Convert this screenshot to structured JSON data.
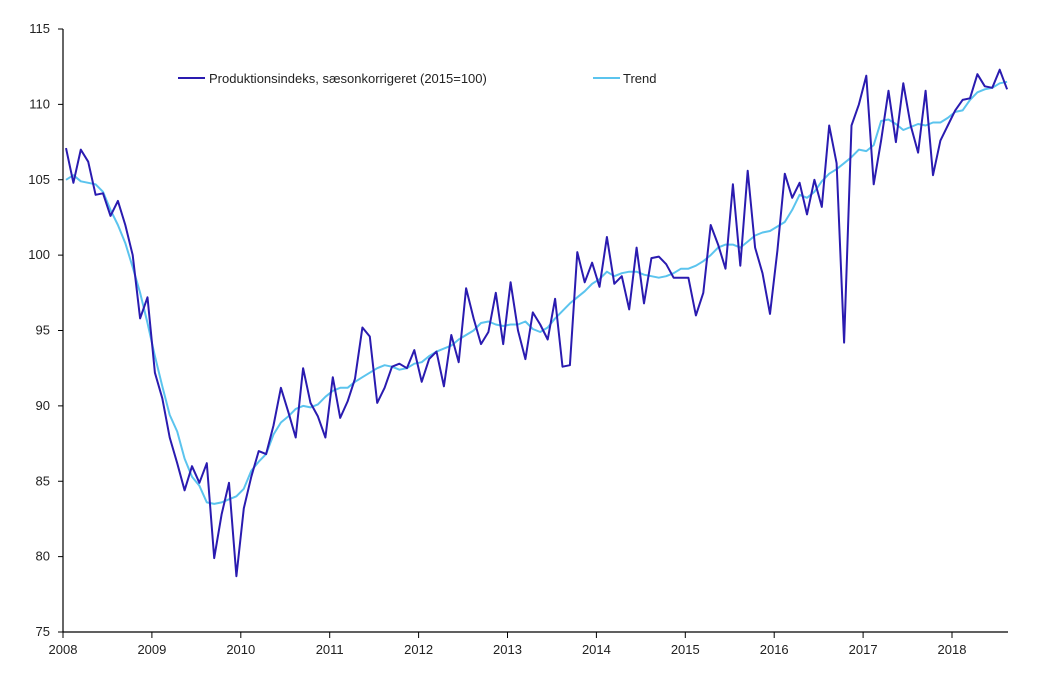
{
  "chart_data": {
    "type": "line",
    "title": "",
    "xlabel": "",
    "ylabel": "",
    "ylim": [
      75,
      115
    ],
    "yticks": [
      "75",
      "80",
      "85",
      "90",
      "95",
      "100",
      "105",
      "110",
      "115"
    ],
    "xticks": [
      "2008",
      "2009",
      "2010",
      "2011",
      "2012",
      "2013",
      "2014",
      "2015",
      "2016",
      "2017",
      "2018"
    ],
    "x_start": "2008-01",
    "frequency": "monthly",
    "grid": false,
    "legend_placement": "top",
    "series": [
      {
        "name": "Produktionsindeks, sæsonkorrigeret (2015=100)",
        "color": "#2a1bb0",
        "values": [
          107.1,
          104.8,
          107.0,
          106.2,
          104.0,
          104.1,
          102.6,
          103.6,
          102.0,
          100.0,
          95.8,
          97.2,
          92.2,
          90.5,
          87.9,
          86.2,
          84.4,
          86.0,
          84.9,
          86.2,
          79.9,
          82.8,
          84.9,
          78.7,
          83.2,
          85.3,
          87.0,
          86.8,
          88.7,
          91.2,
          89.6,
          87.9,
          92.5,
          90.2,
          89.3,
          87.9,
          91.9,
          89.2,
          90.3,
          91.8,
          95.2,
          94.6,
          90.2,
          91.2,
          92.6,
          92.8,
          92.5,
          93.7,
          91.6,
          93.1,
          93.6,
          91.3,
          94.7,
          92.9,
          97.8,
          95.8,
          94.1,
          94.9,
          97.5,
          94.1,
          98.2,
          95.0,
          93.1,
          96.2,
          95.4,
          94.4,
          97.1,
          92.6,
          92.7,
          100.2,
          98.2,
          99.5,
          97.9,
          101.2,
          98.1,
          98.6,
          96.4,
          100.5,
          96.8,
          99.8,
          99.9,
          99.4,
          98.5,
          98.5,
          98.5,
          96.0,
          97.5,
          102.0,
          100.7,
          99.1,
          104.7,
          99.3,
          105.6,
          100.5,
          98.8,
          96.1,
          100.3,
          105.4,
          103.8,
          104.8,
          102.7,
          105.0,
          103.2,
          108.6,
          106.1,
          94.2,
          108.6,
          110.0,
          111.9,
          104.7,
          107.6,
          110.9,
          107.5,
          111.4,
          108.6,
          106.8,
          110.9,
          105.3,
          107.6,
          108.6,
          109.6,
          110.3,
          110.4,
          112.0,
          111.2,
          111.1,
          112.3,
          111.0
        ]
      },
      {
        "name": "Trend",
        "color": "#5bc4ee",
        "values": [
          105.0,
          105.3,
          104.9,
          104.8,
          104.7,
          104.2,
          103.0,
          102.0,
          100.8,
          99.2,
          97.5,
          95.5,
          93.3,
          91.3,
          89.4,
          88.3,
          86.5,
          85.3,
          84.7,
          83.6,
          83.5,
          83.6,
          83.8,
          84.0,
          84.5,
          85.7,
          86.3,
          86.8,
          88.1,
          88.9,
          89.3,
          89.8,
          90.0,
          89.9,
          90.1,
          90.6,
          91.0,
          91.2,
          91.2,
          91.6,
          91.9,
          92.2,
          92.5,
          92.7,
          92.6,
          92.4,
          92.5,
          92.8,
          92.9,
          93.3,
          93.6,
          93.8,
          94.0,
          94.4,
          94.7,
          95.0,
          95.5,
          95.6,
          95.4,
          95.3,
          95.4,
          95.4,
          95.6,
          95.1,
          94.9,
          95.2,
          95.8,
          96.3,
          96.8,
          97.2,
          97.6,
          98.1,
          98.4,
          98.9,
          98.6,
          98.8,
          98.9,
          98.9,
          98.7,
          98.6,
          98.5,
          98.6,
          98.8,
          99.1,
          99.1,
          99.3,
          99.6,
          100.0,
          100.5,
          100.7,
          100.7,
          100.5,
          100.9,
          101.3,
          101.5,
          101.6,
          101.9,
          102.2,
          103.0,
          104.0,
          103.8,
          104.2,
          104.9,
          105.4,
          105.7,
          106.1,
          106.5,
          107.0,
          106.9,
          107.3,
          108.9,
          109.0,
          108.7,
          108.3,
          108.5,
          108.7,
          108.6,
          108.8,
          108.8,
          109.1,
          109.5,
          109.6,
          110.3,
          110.8,
          111.0,
          111.1,
          111.4,
          111.5
        ]
      }
    ]
  }
}
